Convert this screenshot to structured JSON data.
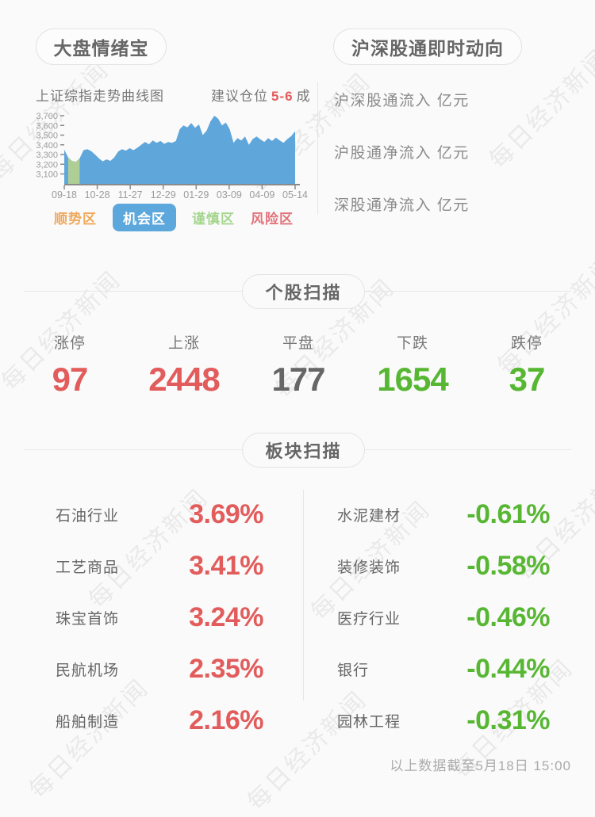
{
  "header": {
    "left_tab": "大盘情绪宝",
    "right_tab": "沪深股通即时动向",
    "chart_title": "上证综指走势曲线图",
    "advice_prefix": "建议仓位",
    "advice_value": "5-6",
    "advice_suffix": "成"
  },
  "flows": {
    "rows": [
      {
        "label": "沪深股通流入 亿元"
      },
      {
        "label": "沪股通净流入 亿元"
      },
      {
        "label": "深股通净流入 亿元"
      }
    ]
  },
  "chart_data": {
    "type": "area",
    "title": "上证综指走势曲线图",
    "ylabel": "",
    "xlabel": "",
    "ylim": [
      3100,
      3700
    ],
    "grid": false,
    "y_ticks": [
      "3,700",
      "3,600",
      "3,500",
      "3,400",
      "3,300",
      "3,200",
      "3,100"
    ],
    "y_tick_values": [
      3700,
      3600,
      3500,
      3400,
      3300,
      3200,
      3100
    ],
    "categories": [
      "09-18",
      "10-28",
      "11-27",
      "12-29",
      "01-29",
      "03-09",
      "04-09",
      "05-14"
    ],
    "values": [
      3350,
      3270,
      3235,
      3225,
      3260,
      3345,
      3355,
      3335,
      3300,
      3260,
      3230,
      3250,
      3235,
      3270,
      3330,
      3355,
      3340,
      3365,
      3345,
      3370,
      3400,
      3430,
      3405,
      3445,
      3420,
      3440,
      3410,
      3430,
      3420,
      3440,
      3560,
      3600,
      3580,
      3625,
      3575,
      3610,
      3500,
      3545,
      3640,
      3700,
      3670,
      3600,
      3630,
      3560,
      3420,
      3470,
      3445,
      3485,
      3400,
      3460,
      3485,
      3455,
      3430,
      3470,
      3440,
      3475,
      3445,
      3420,
      3460,
      3490,
      3540
    ],
    "green_segment": [
      1,
      4
    ],
    "colors": {
      "area_blue": "#5FA6DB",
      "area_green": "#AECE96",
      "axis": "#8A8A8A"
    },
    "legend_position": "bottom",
    "legend": [
      {
        "label": "顺势区",
        "color": "#F0A95C",
        "active": false
      },
      {
        "label": "机会区",
        "color": "#5CA8DC",
        "active": true
      },
      {
        "label": "谨慎区",
        "color": "#A5D68F",
        "active": false
      },
      {
        "label": "风险区",
        "color": "#E2737B",
        "active": false
      }
    ]
  },
  "stock_scan": {
    "section_title": "个股扫描",
    "stats": [
      {
        "label": "涨停",
        "value": "97",
        "color": "red"
      },
      {
        "label": "上涨",
        "value": "2448",
        "color": "red"
      },
      {
        "label": "平盘",
        "value": "177",
        "color": "gray"
      },
      {
        "label": "下跌",
        "value": "1654",
        "color": "green"
      },
      {
        "label": "跌停",
        "value": "37",
        "color": "green"
      }
    ]
  },
  "sector_scan": {
    "section_title": "板块扫描",
    "left": [
      {
        "name": "石油行业",
        "value": "3.69%"
      },
      {
        "name": "工艺商品",
        "value": "3.41%"
      },
      {
        "name": "珠宝首饰",
        "value": "3.24%"
      },
      {
        "name": "民航机场",
        "value": "2.35%"
      },
      {
        "name": "船舶制造",
        "value": "2.16%"
      }
    ],
    "right": [
      {
        "name": "水泥建材",
        "value": "-0.61%"
      },
      {
        "name": "装修装饰",
        "value": "-0.58%"
      },
      {
        "name": "医疗行业",
        "value": "-0.46%"
      },
      {
        "name": "银行",
        "value": "-0.44%"
      },
      {
        "name": "园林工程",
        "value": "-0.31%"
      }
    ]
  },
  "footer": {
    "note": "以上数据截至5月18日 15:00"
  },
  "watermark": {
    "text": "每日经济新闻"
  },
  "colors": {
    "up_red": "#E25C5C",
    "down_green": "#57B733",
    "flat_gray": "#666666"
  }
}
